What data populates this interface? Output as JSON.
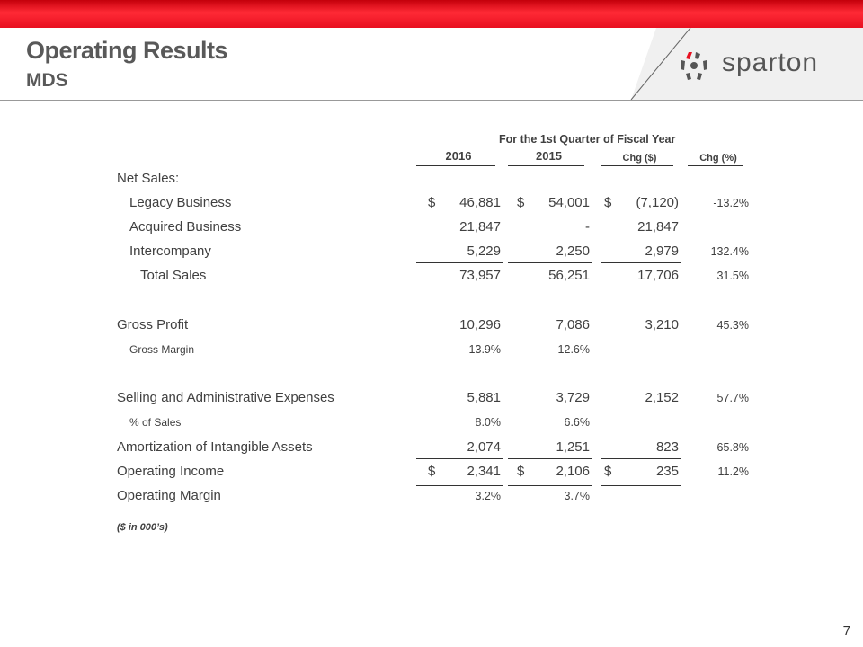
{
  "header": {
    "title": "Operating Results",
    "subtitle": "MDS",
    "logo_text": "sparton",
    "brand_color": "#e81020"
  },
  "table": {
    "group_header": "For the 1st Quarter of Fiscal Year",
    "columns": [
      "2016",
      "2015",
      "Chg ($)",
      "Chg (%)"
    ],
    "rows": [
      {
        "label": "Net Sales:",
        "cells": [
          "",
          "",
          "",
          ""
        ]
      },
      {
        "label": "Legacy Business",
        "dollar": true,
        "cells": [
          "46,881",
          "54,001",
          "(7,120)",
          "-13.2%"
        ]
      },
      {
        "label": "Acquired Business",
        "cells": [
          "21,847",
          "-",
          "21,847",
          ""
        ]
      },
      {
        "label": "Intercompany",
        "cells": [
          "5,229",
          "2,250",
          "2,979",
          "132.4%"
        ]
      },
      {
        "label": "Total Sales",
        "cells": [
          "73,957",
          "56,251",
          "17,706",
          "31.5%"
        ]
      },
      {
        "label": "Gross Profit",
        "cells": [
          "10,296",
          "7,086",
          "3,210",
          "45.3%"
        ]
      },
      {
        "label": "Gross Margin",
        "cells": [
          "13.9%",
          "12.6%",
          "",
          ""
        ]
      },
      {
        "label": "Selling and Administrative Expenses",
        "cells": [
          "5,881",
          "3,729",
          "2,152",
          "57.7%"
        ]
      },
      {
        "label": "% of  Sales",
        "cells": [
          "8.0%",
          "6.6%",
          "",
          ""
        ]
      },
      {
        "label": "Amortization of Intangible Assets",
        "cells": [
          "2,074",
          "1,251",
          "823",
          "65.8%"
        ]
      },
      {
        "label": "Operating Income",
        "dollar": true,
        "cells": [
          "2,341",
          "2,106",
          "235",
          "11.2%"
        ]
      },
      {
        "label": "Operating Margin",
        "cells": [
          "3.2%",
          "3.7%",
          "",
          ""
        ]
      }
    ],
    "dollar_sign": "$",
    "note": "($ in 000’s)"
  },
  "page_number": "7"
}
